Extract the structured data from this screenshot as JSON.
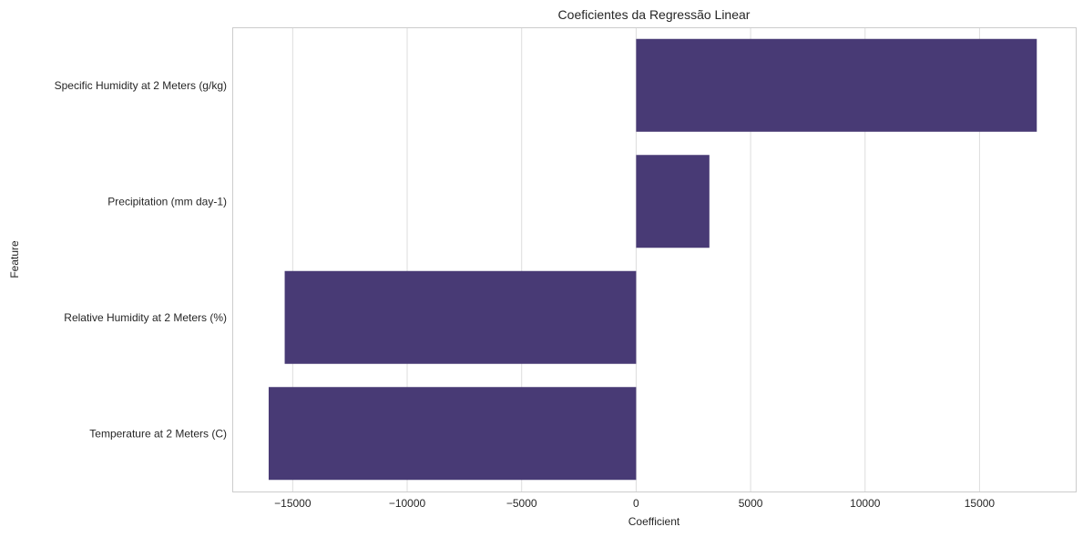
{
  "chart_data": {
    "type": "bar",
    "orientation": "horizontal",
    "title": "Coeficientes da Regressão Linear",
    "xlabel": "Coefficient",
    "ylabel": "Feature",
    "categories": [
      "Specific Humidity at 2 Meters (g/kg)",
      "Precipitation (mm day-1)",
      "Relative Humidity at 2 Meters (%)",
      "Temperature at 2 Meters (C)"
    ],
    "values": [
      17500,
      3200,
      -15350,
      -16050
    ],
    "xlim": [
      -17600,
      19200
    ],
    "xticks": [
      -15000,
      -10000,
      -5000,
      0,
      5000,
      10000,
      15000
    ],
    "xtick_labels": [
      "−15000",
      "−10000",
      "−5000",
      "0",
      "5000",
      "10000",
      "15000"
    ],
    "grid": "vertical",
    "bar_color": "#483a75"
  }
}
